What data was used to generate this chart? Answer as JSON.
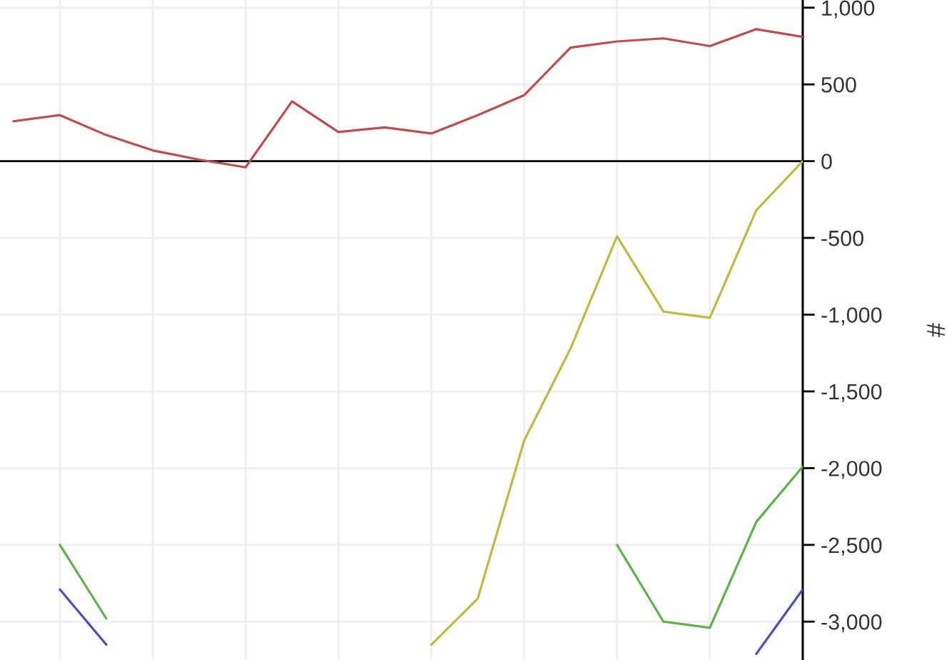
{
  "chart_data": {
    "type": "line",
    "ylabel": "#",
    "categories": [
      null,
      null,
      null,
      null,
      null,
      null,
      null,
      null,
      null,
      null,
      null,
      null,
      null,
      null,
      null,
      null,
      null,
      null
    ],
    "series": [
      {
        "color": "#c14b4b",
        "values": [
          260,
          300,
          170,
          70,
          10,
          -40,
          390,
          190,
          220,
          180,
          300,
          430,
          740,
          780,
          800,
          750,
          860,
          810
        ]
      },
      {
        "color": "#bcbc3c",
        "values": [
          null,
          null,
          null,
          null,
          null,
          null,
          null,
          null,
          null,
          -3150,
          -2850,
          -1820,
          -1220,
          -490,
          -980,
          -1020,
          -320,
          0
        ]
      },
      {
        "color": "#5ab543",
        "values": [
          null,
          -2500,
          -2980,
          null,
          null,
          null,
          null,
          null,
          null,
          null,
          null,
          null,
          null,
          -2500,
          -3000,
          -3040,
          -2350,
          -1990
        ]
      },
      {
        "color": "#4b4bc8",
        "values": [
          null,
          -2790,
          -3150,
          null,
          null,
          null,
          null,
          null,
          null,
          null,
          null,
          null,
          null,
          null,
          null,
          null,
          -3210,
          -2790
        ]
      }
    ],
    "ylim": [
      -3250,
      1050
    ],
    "yticks": [
      {
        "value": 1000,
        "label": "1,000"
      },
      500,
      0,
      {
        "value": -500,
        "label": "-500"
      },
      {
        "value": -1000,
        "label": "-1,000"
      },
      {
        "value": -1500,
        "label": "-1,500"
      },
      {
        "value": -2000,
        "label": "-2,000"
      },
      {
        "value": -2500,
        "label": "-2,500"
      },
      {
        "value": -3000,
        "label": "-3,000"
      }
    ],
    "grid": true,
    "tick_labels": "y",
    "ref_lines": [
      {
        "axis": "y",
        "value": 0,
        "color": "#000000"
      }
    ]
  }
}
